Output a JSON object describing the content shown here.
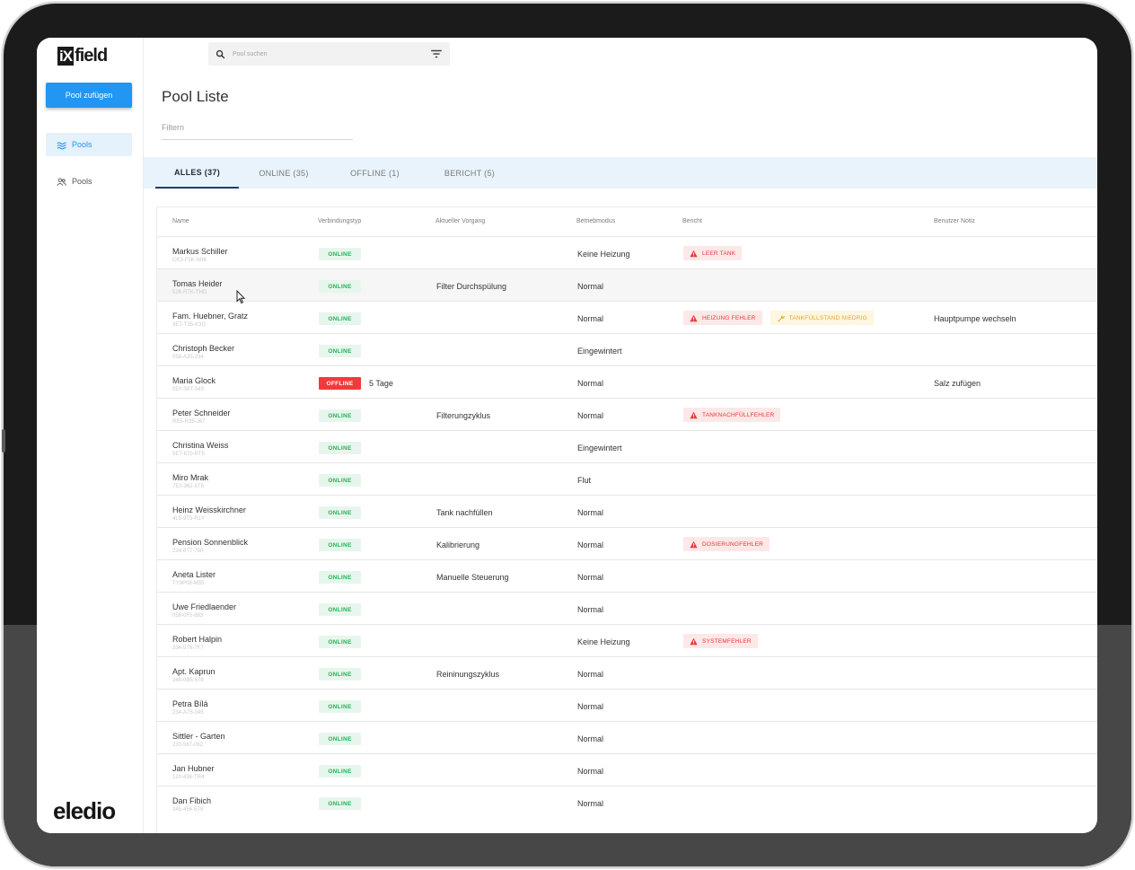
{
  "app": {
    "logo_ix": "iX",
    "logo_field": "field",
    "brand": "eledio"
  },
  "sidebar": {
    "add_button": "Pool zufügen",
    "items": [
      {
        "label": "Pools",
        "icon": "pool-waves-icon",
        "active": true
      },
      {
        "label": "Pools",
        "icon": "users-icon",
        "active": false
      }
    ]
  },
  "search": {
    "placeholder": "Pool suchen",
    "filter_icon": "filter-icon"
  },
  "page": {
    "title": "Pool Liste",
    "filter_placeholder": "Filtern"
  },
  "tabs": [
    {
      "label": "ALLES (37)",
      "active": true
    },
    {
      "label": "ONLINE (35)",
      "active": false
    },
    {
      "label": "OFFLINE (1)",
      "active": false
    },
    {
      "label": "BERICHT (5)",
      "active": false
    }
  ],
  "table": {
    "columns": [
      "Name",
      "Verbindungstyp",
      "Aktueller Vorgang",
      "Betriebmodus",
      "Bericht",
      "Benutzer Notiz"
    ],
    "rows": [
      {
        "name": "Markus Schiller",
        "id": "CK3-F5K-N06",
        "status": "ONLINE",
        "since": "",
        "process": "",
        "mode": "Keine Heizung",
        "reports": [
          {
            "type": "error",
            "text": "LEER TANK"
          }
        ],
        "note": ""
      },
      {
        "name": "Tomas Heider",
        "id": "526-RTK-THG",
        "status": "ONLINE",
        "since": "",
        "process": "Filter Durchspülung",
        "mode": "Normal",
        "reports": [],
        "note": ""
      },
      {
        "name": "Fam. Huebner, Gratz",
        "id": "3ET-T35-K3G",
        "status": "ONLINE",
        "since": "",
        "process": "",
        "mode": "Normal",
        "reports": [
          {
            "type": "error",
            "text": "HEIZUNG FEHLER"
          },
          {
            "type": "warning",
            "text": "TANKFÜLLSTAND NIEDRIG"
          }
        ],
        "note": "Hauptpumpe wechseln"
      },
      {
        "name": "Christoph Becker",
        "id": "058-A35-234",
        "status": "ONLINE",
        "since": "",
        "process": "",
        "mode": "Eingewintert",
        "reports": [],
        "note": ""
      },
      {
        "name": "Maria Glock",
        "id": "05Y-S8T-34S",
        "status": "OFFLINE",
        "since": "5 Tage",
        "process": "",
        "mode": "Normal",
        "reports": [],
        "note": "Salz zufügen"
      },
      {
        "name": "Peter Schneider",
        "id": "RE5-R35-J67",
        "status": "ONLINE",
        "since": "",
        "process": "Filterungzyklus",
        "mode": "Normal",
        "reports": [
          {
            "type": "error",
            "text": "TANKNACHFÜLLFEHLER"
          }
        ],
        "note": ""
      },
      {
        "name": "Christina Weiss",
        "id": "5ET-870-RT5",
        "status": "ONLINE",
        "since": "",
        "process": "",
        "mode": "Eingewintert",
        "reports": [],
        "note": ""
      },
      {
        "name": "Miro Mrak",
        "id": "7E0-362-5T6",
        "status": "ONLINE",
        "since": "",
        "process": "",
        "mode": "Flut",
        "reports": [],
        "note": ""
      },
      {
        "name": "Heinz Weisskirchner",
        "id": "4L5-9T5-R1Y",
        "status": "ONLINE",
        "since": "",
        "process": "Tank nachfüllen",
        "mode": "Normal",
        "reports": [],
        "note": ""
      },
      {
        "name": "Pension Sonnenblick",
        "id": "224-8T7-760",
        "status": "ONLINE",
        "since": "",
        "process": "Kalibrierung",
        "mode": "Normal",
        "reports": [
          {
            "type": "error",
            "text": "DOSIERUNGFEHLER"
          }
        ],
        "note": ""
      },
      {
        "name": "Aneta Lister",
        "id": "TY9P08-M55",
        "status": "ONLINE",
        "since": "",
        "process": "Manuelle Steuerung",
        "mode": "Normal",
        "reports": [],
        "note": ""
      },
      {
        "name": "Uwe Friedlaender",
        "id": "058-0F5-883",
        "status": "ONLINE",
        "since": "",
        "process": "",
        "mode": "Normal",
        "reports": [],
        "note": ""
      },
      {
        "name": "Robert Halpin",
        "id": "334-5T6-7F7",
        "status": "ONLINE",
        "since": "",
        "process": "",
        "mode": "Keine Heizung",
        "reports": [
          {
            "type": "error",
            "text": "SYSTEMFEHLER"
          }
        ],
        "note": ""
      },
      {
        "name": "Apt. Kaprun",
        "id": "346-0B5-578",
        "status": "ONLINE",
        "since": "",
        "process": "Reininungszyklus",
        "mode": "Normal",
        "reports": [],
        "note": ""
      },
      {
        "name": "Petra Bílá",
        "id": "234-A75-345",
        "status": "ONLINE",
        "since": "",
        "process": "",
        "mode": "Normal",
        "reports": [],
        "note": ""
      },
      {
        "name": "Sittler - Garten",
        "id": "230-567-062",
        "status": "ONLINE",
        "since": "",
        "process": "",
        "mode": "Normal",
        "reports": [],
        "note": ""
      },
      {
        "name": "Jan Hubner",
        "id": "120-436-TR4",
        "status": "ONLINE",
        "since": "",
        "process": "",
        "mode": "Normal",
        "reports": [],
        "note": ""
      },
      {
        "name": "Dan Fibich",
        "id": "345-456-5T8",
        "status": "ONLINE",
        "since": "",
        "process": "",
        "mode": "Normal",
        "reports": [],
        "note": ""
      }
    ]
  },
  "colors": {
    "accent": "#2196f3",
    "online": "#22b35a",
    "offline": "#f23a3a",
    "error": "#e53935",
    "warning": "#e0a82e",
    "tabbar": "#e8f3fb"
  }
}
